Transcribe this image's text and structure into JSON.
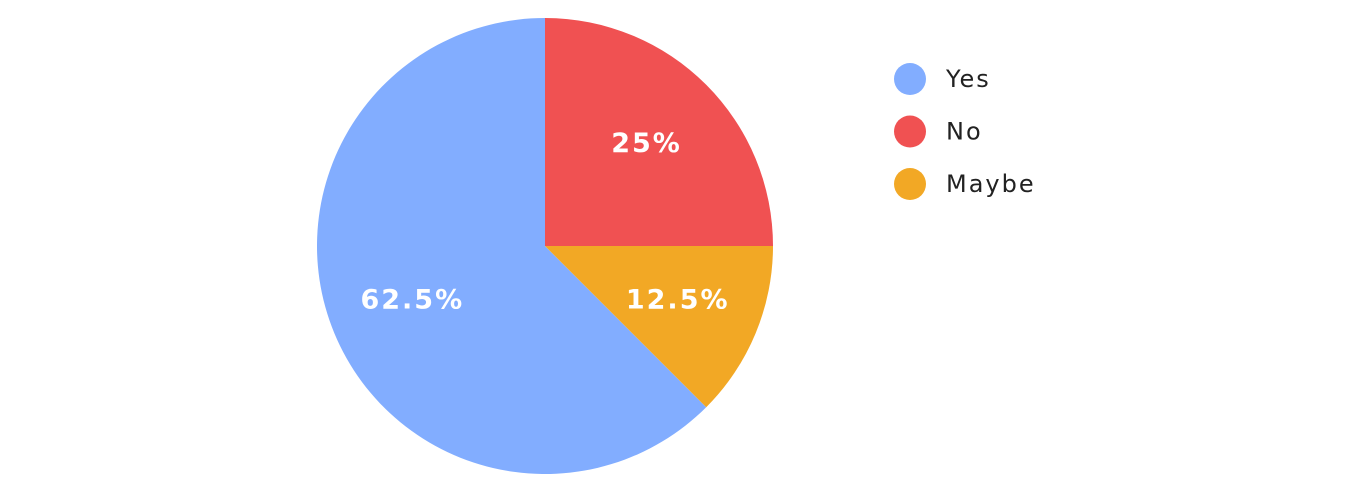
{
  "chart_data": {
    "type": "pie",
    "categories": [
      "Yes",
      "No",
      "Maybe"
    ],
    "values": [
      62.5,
      25,
      12.5
    ],
    "value_labels": [
      "62.5%",
      "25%",
      "12.5%"
    ],
    "colors": [
      "#82adff",
      "#f05152",
      "#f2a825"
    ],
    "legend": "right"
  }
}
